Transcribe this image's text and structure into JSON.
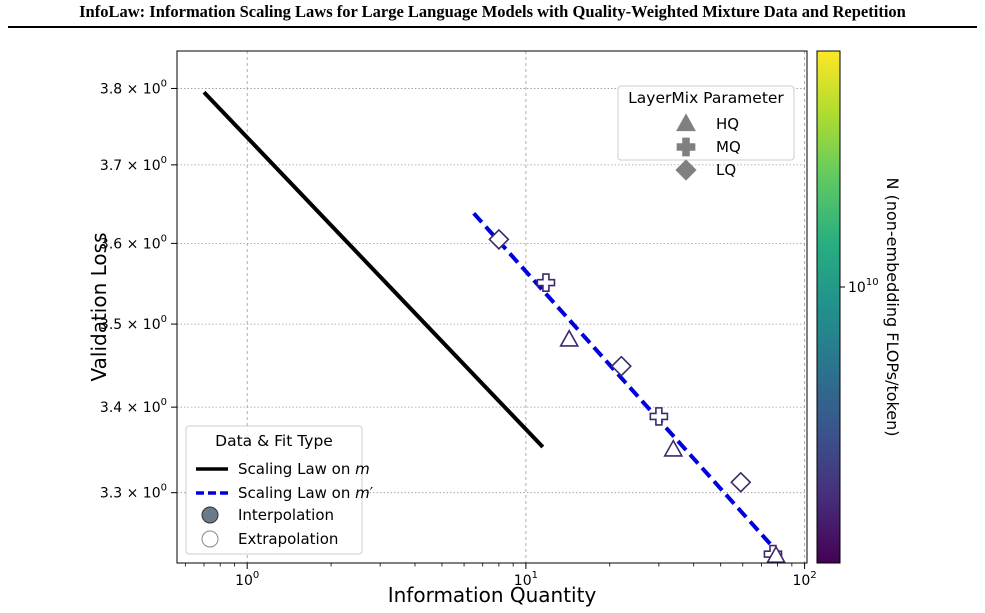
{
  "paper": {
    "header_title": "InfoLaw: Information Scaling Laws for Large Language Models with Quality-Weighted Mixture Data and Repetition"
  },
  "chart_data": {
    "type": "scatter",
    "xlabel": "Information Quantity",
    "ylabel": "Validation Loss",
    "xscale": "log",
    "yscale": "log",
    "xlim": [
      0.56,
      102
    ],
    "ylim": [
      3.22,
      3.85
    ],
    "grid": true,
    "x_ticks": [
      {
        "value": 1,
        "base": "10",
        "exp": "0"
      },
      {
        "value": 10,
        "base": "10",
        "exp": "1"
      },
      {
        "value": 100,
        "base": "10",
        "exp": "2"
      }
    ],
    "y_ticks": [
      {
        "value": 3.3,
        "mantissa": "3.3",
        "base": "10",
        "exp": "0"
      },
      {
        "value": 3.4,
        "mantissa": "3.4",
        "base": "10",
        "exp": "0"
      },
      {
        "value": 3.5,
        "mantissa": "3.5",
        "base": "10",
        "exp": "0"
      },
      {
        "value": 3.6,
        "mantissa": "3.6",
        "base": "10",
        "exp": "0"
      },
      {
        "value": 3.7,
        "mantissa": "3.7",
        "base": "10",
        "exp": "0"
      },
      {
        "value": 3.8,
        "mantissa": "3.8",
        "base": "10",
        "exp": "0"
      }
    ],
    "times_sign": "×",
    "lines": [
      {
        "name": "Scaling Law on m",
        "x": [
          0.7,
          11.5
        ],
        "y": [
          3.795,
          3.353
        ],
        "color": "#000000",
        "style": "solid"
      },
      {
        "name": "Scaling Law on m′",
        "x": [
          6.5,
          78
        ],
        "y": [
          3.638,
          3.236
        ],
        "color": "#0000dd",
        "style": "dashed"
      }
    ],
    "points": [
      {
        "marker": "LQ",
        "x": 8.0,
        "y": 3.605
      },
      {
        "marker": "MQ",
        "x": 11.8,
        "y": 3.551
      },
      {
        "marker": "HQ",
        "x": 14.3,
        "y": 3.481
      },
      {
        "marker": "LQ",
        "x": 22.0,
        "y": 3.449
      },
      {
        "marker": "MQ",
        "x": 30.0,
        "y": 3.389
      },
      {
        "marker": "HQ",
        "x": 33.8,
        "y": 3.35
      },
      {
        "marker": "LQ",
        "x": 59.0,
        "y": 3.312
      },
      {
        "marker": "MQ",
        "x": 77.0,
        "y": 3.23
      },
      {
        "marker": "HQ",
        "x": 79.0,
        "y": 3.228
      }
    ],
    "point_edge_color": "#3d2a6b",
    "legend_markers": {
      "title": "LayerMix Parameter",
      "position": "top-right",
      "entries": [
        "HQ",
        "MQ",
        "LQ"
      ],
      "color": "#808080"
    },
    "legend_types": {
      "title": "Data & Fit Type",
      "position": "bottom-left",
      "line_entries": [
        {
          "prefix": "Scaling Law on ",
          "var": "m",
          "suffix": ""
        },
        {
          "prefix": "Scaling Law on ",
          "var": "m",
          "suffix": "′"
        }
      ],
      "point_entries": [
        "Interpolation",
        "Extrapolation"
      ],
      "interp_color": "#6a7a88"
    },
    "colorbar": {
      "label": "N (non-embedding FLOPs/token)",
      "tick": {
        "base": "10",
        "exp": "10"
      },
      "colormap": "viridis"
    }
  }
}
